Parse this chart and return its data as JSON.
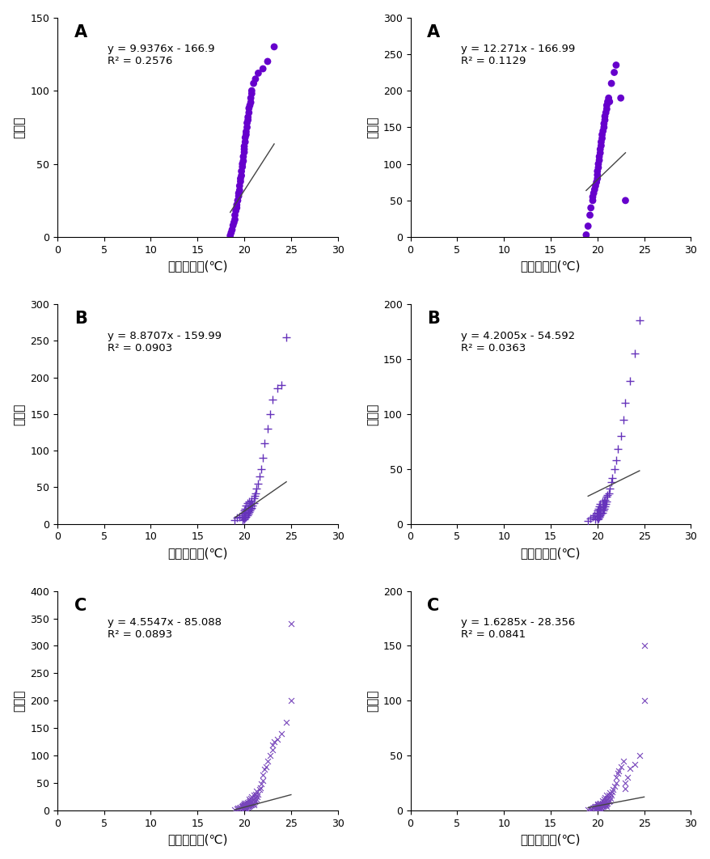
{
  "panels": [
    {
      "label": "A",
      "equation": "y = 9.9376x - 166.9",
      "r2": "R² = 0.2576",
      "slope": 9.9376,
      "intercept": -166.9,
      "marker": "o",
      "color": "#6600cc",
      "xlim": [
        0,
        30
      ],
      "ylim": [
        0,
        150
      ],
      "xticks": [
        0,
        5,
        10,
        15,
        20,
        25,
        30
      ],
      "yticks": [
        0,
        50,
        100,
        150
      ],
      "xlabel": "일최저기온(℃)",
      "ylabel": "발생수",
      "col": 0,
      "row": 0,
      "x_data": [
        18.5,
        18.6,
        18.7,
        18.8,
        18.9,
        19.0,
        19.0,
        19.1,
        19.2,
        19.2,
        19.3,
        19.4,
        19.4,
        19.5,
        19.5,
        19.6,
        19.6,
        19.7,
        19.7,
        19.8,
        19.8,
        19.9,
        19.9,
        20.0,
        20.0,
        20.0,
        20.1,
        20.1,
        20.2,
        20.2,
        20.3,
        20.3,
        20.4,
        20.4,
        20.5,
        20.5,
        20.6,
        20.7,
        20.7,
        20.8,
        20.8,
        21.0,
        21.2,
        21.5,
        22.0,
        22.5,
        23.2
      ],
      "y_data": [
        1,
        3,
        5,
        8,
        10,
        12,
        15,
        18,
        20,
        22,
        25,
        28,
        30,
        32,
        35,
        38,
        40,
        42,
        45,
        48,
        50,
        52,
        55,
        58,
        60,
        62,
        65,
        68,
        70,
        72,
        75,
        78,
        80,
        82,
        85,
        88,
        90,
        92,
        95,
        98,
        100,
        105,
        108,
        112,
        115,
        120,
        130
      ]
    },
    {
      "label": "A",
      "equation": "y = 12.271x - 166.99",
      "r2": "R² = 0.1129",
      "slope": 12.271,
      "intercept": -166.99,
      "marker": "o",
      "color": "#6600cc",
      "xlim": [
        0,
        30
      ],
      "ylim": [
        0,
        300
      ],
      "xticks": [
        0,
        5,
        10,
        15,
        20,
        25,
        30
      ],
      "yticks": [
        0,
        50,
        100,
        150,
        200,
        250,
        300
      ],
      "xlabel": "일최저기온(℃)",
      "ylabel": "발생률",
      "col": 1,
      "row": 0,
      "x_data": [
        18.8,
        19.0,
        19.2,
        19.3,
        19.5,
        19.5,
        19.6,
        19.7,
        19.8,
        19.9,
        20.0,
        20.0,
        20.0,
        20.1,
        20.1,
        20.2,
        20.2,
        20.3,
        20.3,
        20.4,
        20.4,
        20.5,
        20.5,
        20.6,
        20.7,
        20.7,
        20.8,
        20.8,
        20.9,
        21.0,
        21.0,
        21.1,
        21.2,
        21.3,
        21.5,
        21.8,
        22.0,
        22.5,
        23.0
      ],
      "y_data": [
        3,
        15,
        30,
        40,
        50,
        55,
        60,
        65,
        70,
        75,
        80,
        85,
        90,
        95,
        100,
        105,
        110,
        115,
        120,
        125,
        130,
        135,
        140,
        145,
        150,
        155,
        160,
        165,
        170,
        175,
        180,
        185,
        190,
        185,
        210,
        225,
        235,
        190,
        50
      ]
    },
    {
      "label": "B",
      "equation": "y = 8.8707x - 159.99",
      "r2": "R² = 0.0903",
      "slope": 8.8707,
      "intercept": -159.99,
      "marker": "+",
      "color": "#6633bb",
      "xlim": [
        0,
        30
      ],
      "ylim": [
        0,
        300
      ],
      "xticks": [
        0,
        5,
        10,
        15,
        20,
        25,
        30
      ],
      "yticks": [
        0,
        50,
        100,
        150,
        200,
        250,
        300
      ],
      "xlabel": "일최저기온(℃)",
      "ylabel": "발생수",
      "col": 0,
      "row": 1,
      "x_data": [
        19.0,
        19.2,
        19.5,
        19.7,
        19.8,
        19.9,
        19.9,
        20.0,
        20.0,
        20.0,
        20.0,
        20.1,
        20.1,
        20.1,
        20.2,
        20.2,
        20.2,
        20.3,
        20.3,
        20.3,
        20.4,
        20.4,
        20.5,
        20.5,
        20.5,
        20.6,
        20.6,
        20.7,
        20.7,
        20.8,
        20.8,
        20.9,
        21.0,
        21.0,
        21.1,
        21.2,
        21.3,
        21.5,
        21.6,
        21.8,
        22.0,
        22.2,
        22.5,
        22.8,
        23.0,
        23.5,
        24.0,
        24.5
      ],
      "y_data": [
        5,
        8,
        10,
        12,
        5,
        8,
        15,
        6,
        10,
        14,
        18,
        8,
        12,
        20,
        10,
        15,
        25,
        12,
        18,
        28,
        14,
        20,
        16,
        22,
        30,
        18,
        25,
        20,
        28,
        22,
        32,
        25,
        28,
        35,
        38,
        42,
        48,
        55,
        65,
        75,
        90,
        110,
        130,
        150,
        170,
        185,
        190,
        255
      ]
    },
    {
      "label": "B",
      "equation": "y = 4.2005x - 54.592",
      "r2": "R² = 0.0363",
      "slope": 4.2005,
      "intercept": -54.592,
      "marker": "+",
      "color": "#6633bb",
      "xlim": [
        0,
        30
      ],
      "ylim": [
        0,
        200
      ],
      "xticks": [
        0,
        5,
        10,
        15,
        20,
        25,
        30
      ],
      "yticks": [
        0,
        50,
        100,
        150,
        200
      ],
      "xlabel": "일최저기온(℃)",
      "ylabel": "발생률",
      "col": 1,
      "row": 1,
      "x_data": [
        19.0,
        19.2,
        19.5,
        19.7,
        19.8,
        19.9,
        19.9,
        20.0,
        20.0,
        20.0,
        20.0,
        20.1,
        20.1,
        20.1,
        20.2,
        20.2,
        20.2,
        20.3,
        20.3,
        20.3,
        20.4,
        20.4,
        20.5,
        20.5,
        20.5,
        20.6,
        20.6,
        20.7,
        20.7,
        20.8,
        20.8,
        20.9,
        21.0,
        21.0,
        21.1,
        21.2,
        21.3,
        21.5,
        21.6,
        21.8,
        22.0,
        22.2,
        22.5,
        22.8,
        23.0,
        23.5,
        24.0,
        24.5
      ],
      "y_data": [
        3,
        5,
        6,
        8,
        4,
        6,
        10,
        4,
        7,
        9,
        12,
        5,
        8,
        14,
        6,
        10,
        16,
        8,
        12,
        18,
        9,
        14,
        10,
        15,
        20,
        12,
        18,
        14,
        20,
        16,
        22,
        18,
        20,
        25,
        26,
        28,
        32,
        38,
        42,
        50,
        58,
        68,
        80,
        95,
        110,
        130,
        155,
        185
      ]
    },
    {
      "label": "C",
      "equation": "y = 4.5547x - 85.088",
      "r2": "R² = 0.0893",
      "slope": 4.5547,
      "intercept": -85.088,
      "marker": "x",
      "color": "#7744bb",
      "xlim": [
        0,
        30
      ],
      "ylim": [
        0,
        400
      ],
      "xticks": [
        0,
        5,
        10,
        15,
        20,
        25,
        30
      ],
      "yticks": [
        0,
        50,
        100,
        150,
        200,
        250,
        300,
        350,
        400
      ],
      "xlabel": "일최저기온(℃)",
      "ylabel": "발생수",
      "col": 0,
      "row": 2,
      "x_data": [
        19.0,
        19.2,
        19.3,
        19.5,
        19.6,
        19.7,
        19.8,
        19.8,
        19.9,
        19.9,
        20.0,
        20.0,
        20.0,
        20.0,
        20.0,
        20.0,
        20.1,
        20.1,
        20.1,
        20.1,
        20.2,
        20.2,
        20.2,
        20.2,
        20.3,
        20.3,
        20.3,
        20.3,
        20.4,
        20.4,
        20.4,
        20.5,
        20.5,
        20.5,
        20.5,
        20.6,
        20.6,
        20.6,
        20.7,
        20.7,
        20.7,
        20.8,
        20.8,
        20.8,
        20.9,
        20.9,
        21.0,
        21.0,
        21.0,
        21.0,
        21.1,
        21.1,
        21.2,
        21.2,
        21.3,
        21.3,
        21.4,
        21.5,
        21.6,
        21.7,
        21.8,
        22.0,
        22.0,
        22.2,
        22.3,
        22.5,
        22.8,
        23.0,
        23.0,
        23.2,
        23.5,
        24.0,
        24.5,
        25.0,
        25.0
      ],
      "y_data": [
        2,
        3,
        4,
        5,
        6,
        7,
        8,
        9,
        6,
        10,
        3,
        5,
        7,
        9,
        11,
        13,
        4,
        6,
        8,
        10,
        5,
        8,
        11,
        14,
        6,
        9,
        12,
        15,
        7,
        10,
        14,
        8,
        12,
        16,
        20,
        9,
        13,
        18,
        10,
        15,
        22,
        11,
        17,
        25,
        12,
        19,
        10,
        14,
        20,
        28,
        16,
        24,
        18,
        30,
        20,
        35,
        25,
        30,
        38,
        42,
        48,
        55,
        65,
        75,
        80,
        90,
        100,
        110,
        120,
        125,
        130,
        140,
        160,
        200,
        340
      ]
    },
    {
      "label": "C",
      "equation": "y = 1.6285x - 28.356",
      "r2": "R² = 0.0841",
      "slope": 1.6285,
      "intercept": -28.356,
      "marker": "x",
      "color": "#7744bb",
      "xlim": [
        0,
        30
      ],
      "ylim": [
        0,
        200
      ],
      "xticks": [
        0,
        5,
        10,
        15,
        20,
        25,
        30
      ],
      "yticks": [
        0,
        50,
        100,
        150,
        200
      ],
      "xlabel": "일최저기온(℃)",
      "ylabel": "발생률",
      "col": 1,
      "row": 2,
      "x_data": [
        19.0,
        19.2,
        19.3,
        19.5,
        19.6,
        19.7,
        19.8,
        19.8,
        19.9,
        19.9,
        20.0,
        20.0,
        20.0,
        20.0,
        20.0,
        20.0,
        20.1,
        20.1,
        20.1,
        20.1,
        20.2,
        20.2,
        20.2,
        20.2,
        20.3,
        20.3,
        20.3,
        20.3,
        20.4,
        20.4,
        20.4,
        20.5,
        20.5,
        20.5,
        20.5,
        20.6,
        20.6,
        20.6,
        20.7,
        20.7,
        20.7,
        20.8,
        20.8,
        20.8,
        20.9,
        20.9,
        21.0,
        21.0,
        21.0,
        21.0,
        21.1,
        21.1,
        21.2,
        21.2,
        21.3,
        21.3,
        21.4,
        21.5,
        21.6,
        21.7,
        21.8,
        22.0,
        22.0,
        22.2,
        22.3,
        22.5,
        22.8,
        23.0,
        23.0,
        23.2,
        23.5,
        24.0,
        24.5,
        25.0,
        25.0
      ],
      "y_data": [
        0.5,
        1,
        1.5,
        2,
        2.5,
        3,
        3.5,
        4,
        2,
        4,
        1,
        2,
        3,
        4,
        5,
        6,
        1.5,
        2.5,
        3.5,
        5,
        2,
        3,
        4.5,
        6,
        2.5,
        3.5,
        5,
        7,
        3,
        4,
        6,
        3.5,
        5,
        7,
        9,
        4,
        6,
        8,
        4.5,
        7,
        10,
        5,
        8,
        12,
        5.5,
        9,
        4,
        6,
        9,
        14,
        7,
        11,
        8,
        14,
        9,
        16,
        11,
        14,
        17,
        19,
        22,
        25,
        30,
        34,
        36,
        40,
        45,
        20,
        25,
        30,
        38,
        42,
        50,
        100,
        150
      ]
    }
  ],
  "bg_color": "#ffffff",
  "text_color": "#000000",
  "line_color": "#444444",
  "eq_fontsize": 9.5,
  "panel_label_fontsize": 15,
  "label_fontsize": 11,
  "tick_fontsize": 9
}
